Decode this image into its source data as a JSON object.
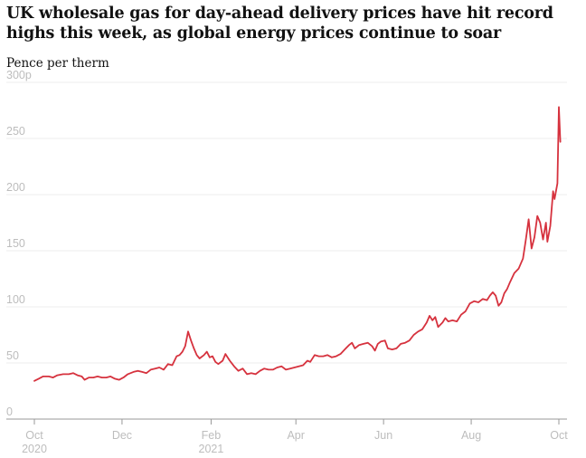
{
  "title": "UK wholesale gas for day-ahead delivery prices have hit record highs this week, as global energy prices continue to soar",
  "colors": {
    "line": "#d6323e",
    "grid": "#ededed",
    "tick_text": "#bdbdbd",
    "text": "#121212"
  },
  "chart_data": {
    "type": "line",
    "title": "UK wholesale gas for day-ahead delivery prices have hit record highs this week, as global energy prices continue to soar",
    "xlabel": "",
    "ylabel": "Pence per therm",
    "ylim": [
      0,
      300
    ],
    "grid": true,
    "yticks": [
      {
        "value": 0,
        "label": "0"
      },
      {
        "value": 50,
        "label": "50"
      },
      {
        "value": 100,
        "label": "100"
      },
      {
        "value": 150,
        "label": "150"
      },
      {
        "value": 200,
        "label": "200"
      },
      {
        "value": 250,
        "label": "250"
      },
      {
        "value": 300,
        "label": "300p"
      }
    ],
    "xticks": [
      {
        "date": "2020-10-01",
        "label": "Oct",
        "sublabel": "2020"
      },
      {
        "date": "2020-12-01",
        "label": "Dec",
        "sublabel": ""
      },
      {
        "date": "2021-02-01",
        "label": "Feb",
        "sublabel": "2021"
      },
      {
        "date": "2021-04-01",
        "label": "Apr",
        "sublabel": ""
      },
      {
        "date": "2021-06-01",
        "label": "Jun",
        "sublabel": ""
      },
      {
        "date": "2021-08-01",
        "label": "Aug",
        "sublabel": ""
      },
      {
        "date": "2021-10-01",
        "label": "Oct",
        "sublabel": ""
      }
    ],
    "series": [
      {
        "name": "",
        "color": "#d6323e",
        "points": [
          [
            "2020-10-01",
            34
          ],
          [
            "2020-10-04",
            36
          ],
          [
            "2020-10-07",
            38
          ],
          [
            "2020-10-11",
            38
          ],
          [
            "2020-10-14",
            37
          ],
          [
            "2020-10-17",
            39
          ],
          [
            "2020-10-21",
            40
          ],
          [
            "2020-10-25",
            40
          ],
          [
            "2020-10-28",
            41
          ],
          [
            "2020-10-31",
            39
          ],
          [
            "2020-11-03",
            38
          ],
          [
            "2020-11-05",
            35
          ],
          [
            "2020-11-08",
            37
          ],
          [
            "2020-11-11",
            37
          ],
          [
            "2020-11-14",
            38
          ],
          [
            "2020-11-17",
            37
          ],
          [
            "2020-11-20",
            37
          ],
          [
            "2020-11-23",
            38
          ],
          [
            "2020-11-26",
            36
          ],
          [
            "2020-11-29",
            35
          ],
          [
            "2020-12-02",
            37
          ],
          [
            "2020-12-05",
            40
          ],
          [
            "2020-12-09",
            42
          ],
          [
            "2020-12-12",
            43
          ],
          [
            "2020-12-15",
            42
          ],
          [
            "2020-12-18",
            41
          ],
          [
            "2020-12-21",
            44
          ],
          [
            "2020-12-24",
            45
          ],
          [
            "2020-12-27",
            46
          ],
          [
            "2020-12-30",
            44
          ],
          [
            "2021-01-02",
            49
          ],
          [
            "2021-01-05",
            48
          ],
          [
            "2021-01-08",
            56
          ],
          [
            "2021-01-10",
            57
          ],
          [
            "2021-01-12",
            60
          ],
          [
            "2021-01-14",
            65
          ],
          [
            "2021-01-16",
            78
          ],
          [
            "2021-01-18",
            70
          ],
          [
            "2021-01-20",
            63
          ],
          [
            "2021-01-22",
            57
          ],
          [
            "2021-01-24",
            54
          ],
          [
            "2021-01-27",
            57
          ],
          [
            "2021-01-29",
            60
          ],
          [
            "2021-01-31",
            55
          ],
          [
            "2021-02-02",
            56
          ],
          [
            "2021-02-04",
            51
          ],
          [
            "2021-02-06",
            49
          ],
          [
            "2021-02-09",
            52
          ],
          [
            "2021-02-11",
            58
          ],
          [
            "2021-02-14",
            52
          ],
          [
            "2021-02-17",
            47
          ],
          [
            "2021-02-20",
            43
          ],
          [
            "2021-02-23",
            45
          ],
          [
            "2021-02-26",
            40
          ],
          [
            "2021-03-01",
            41
          ],
          [
            "2021-03-04",
            40
          ],
          [
            "2021-03-07",
            43
          ],
          [
            "2021-03-10",
            45
          ],
          [
            "2021-03-13",
            44
          ],
          [
            "2021-03-16",
            44
          ],
          [
            "2021-03-19",
            46
          ],
          [
            "2021-03-22",
            47
          ],
          [
            "2021-03-25",
            44
          ],
          [
            "2021-03-28",
            45
          ],
          [
            "2021-03-31",
            46
          ],
          [
            "2021-04-03",
            47
          ],
          [
            "2021-04-06",
            48
          ],
          [
            "2021-04-09",
            52
          ],
          [
            "2021-04-11",
            51
          ],
          [
            "2021-04-14",
            57
          ],
          [
            "2021-04-17",
            56
          ],
          [
            "2021-04-20",
            56
          ],
          [
            "2021-04-23",
            57
          ],
          [
            "2021-04-26",
            55
          ],
          [
            "2021-04-29",
            56
          ],
          [
            "2021-05-02",
            58
          ],
          [
            "2021-05-05",
            62
          ],
          [
            "2021-05-08",
            66
          ],
          [
            "2021-05-10",
            68
          ],
          [
            "2021-05-12",
            63
          ],
          [
            "2021-05-15",
            66
          ],
          [
            "2021-05-18",
            67
          ],
          [
            "2021-05-21",
            68
          ],
          [
            "2021-05-24",
            65
          ],
          [
            "2021-05-26",
            61
          ],
          [
            "2021-05-28",
            67
          ],
          [
            "2021-05-30",
            69
          ],
          [
            "2021-06-02",
            70
          ],
          [
            "2021-06-04",
            63
          ],
          [
            "2021-06-07",
            62
          ],
          [
            "2021-06-10",
            63
          ],
          [
            "2021-06-13",
            67
          ],
          [
            "2021-06-16",
            68
          ],
          [
            "2021-06-19",
            70
          ],
          [
            "2021-06-22",
            75
          ],
          [
            "2021-06-25",
            78
          ],
          [
            "2021-06-28",
            80
          ],
          [
            "2021-07-01",
            86
          ],
          [
            "2021-07-03",
            92
          ],
          [
            "2021-07-05",
            88
          ],
          [
            "2021-07-07",
            91
          ],
          [
            "2021-07-09",
            82
          ],
          [
            "2021-07-12",
            86
          ],
          [
            "2021-07-14",
            90
          ],
          [
            "2021-07-16",
            87
          ],
          [
            "2021-07-19",
            88
          ],
          [
            "2021-07-22",
            87
          ],
          [
            "2021-07-25",
            93
          ],
          [
            "2021-07-28",
            96
          ],
          [
            "2021-07-31",
            103
          ],
          [
            "2021-08-03",
            105
          ],
          [
            "2021-08-06",
            104
          ],
          [
            "2021-08-09",
            107
          ],
          [
            "2021-08-12",
            106
          ],
          [
            "2021-08-14",
            110
          ],
          [
            "2021-08-16",
            113
          ],
          [
            "2021-08-18",
            110
          ],
          [
            "2021-08-20",
            101
          ],
          [
            "2021-08-22",
            104
          ],
          [
            "2021-08-24",
            112
          ],
          [
            "2021-08-26",
            116
          ],
          [
            "2021-08-28",
            122
          ],
          [
            "2021-08-31",
            130
          ],
          [
            "2021-09-03",
            134
          ],
          [
            "2021-09-06",
            143
          ],
          [
            "2021-09-08",
            160
          ],
          [
            "2021-09-10",
            178
          ],
          [
            "2021-09-12",
            152
          ],
          [
            "2021-09-14",
            162
          ],
          [
            "2021-09-16",
            181
          ],
          [
            "2021-09-18",
            175
          ],
          [
            "2021-09-20",
            160
          ],
          [
            "2021-09-22",
            175
          ],
          [
            "2021-09-23",
            158
          ],
          [
            "2021-09-25",
            172
          ],
          [
            "2021-09-27",
            203
          ],
          [
            "2021-09-28",
            196
          ],
          [
            "2021-09-30",
            210
          ],
          [
            "2021-10-01",
            278
          ],
          [
            "2021-10-02",
            247
          ]
        ]
      }
    ]
  }
}
